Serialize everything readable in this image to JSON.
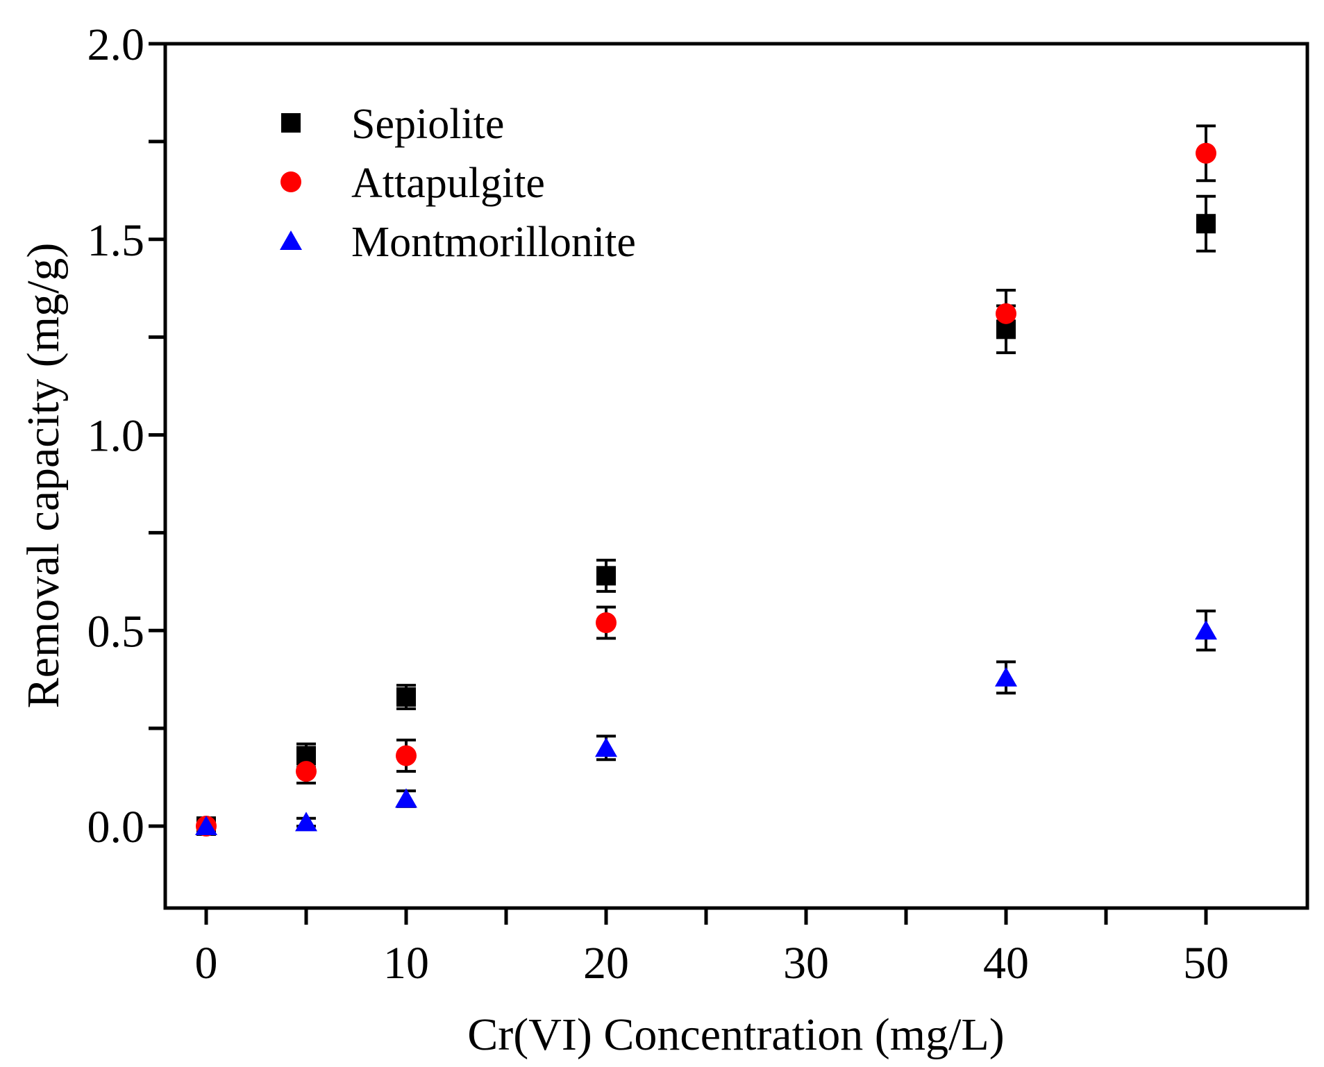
{
  "chart_data": {
    "type": "scatter",
    "title": "",
    "xlabel": "Cr(VI) Concentration (mg/L)",
    "ylabel": "Removal capacity (mg/g)",
    "xlim": [
      -4,
      55
    ],
    "ylim": [
      -0.2,
      2.0
    ],
    "x_ticks": [
      0,
      10,
      20,
      30,
      40,
      50
    ],
    "x_tick_labels": [
      "0",
      "10",
      "20",
      "30",
      "40",
      "50"
    ],
    "x_minor_ticks": [
      5,
      15,
      25,
      35,
      45
    ],
    "y_ticks": [
      0.0,
      0.5,
      1.0,
      1.5,
      2.0
    ],
    "y_tick_labels": [
      "0.0",
      "0.5",
      "1.0",
      "1.5",
      "2.0"
    ],
    "y_minor_ticks": [
      0.25,
      0.75,
      1.25,
      1.75
    ],
    "grid": false,
    "legend_position": "top-left",
    "series": [
      {
        "name": "Sepiolite",
        "marker": "square",
        "color": "#000000",
        "x": [
          0,
          5,
          10,
          20,
          40,
          50
        ],
        "y": [
          0.0,
          0.18,
          0.33,
          0.64,
          1.27,
          1.54
        ],
        "error": [
          0.0,
          0.03,
          0.03,
          0.04,
          0.06,
          0.07
        ]
      },
      {
        "name": "Attapulgite",
        "marker": "circle",
        "color": "#ff0000",
        "x": [
          0,
          5,
          10,
          20,
          40,
          50
        ],
        "y": [
          0.0,
          0.14,
          0.18,
          0.52,
          1.31,
          1.72
        ],
        "error": [
          0.0,
          0.03,
          0.04,
          0.04,
          0.06,
          0.07
        ]
      },
      {
        "name": "Montmorillonite",
        "marker": "triangle",
        "color": "#0000ff",
        "x": [
          0,
          5,
          10,
          20,
          40,
          50
        ],
        "y": [
          0.0,
          0.01,
          0.07,
          0.2,
          0.38,
          0.5
        ],
        "error": [
          0.0,
          0.01,
          0.02,
          0.03,
          0.04,
          0.05
        ]
      }
    ]
  }
}
